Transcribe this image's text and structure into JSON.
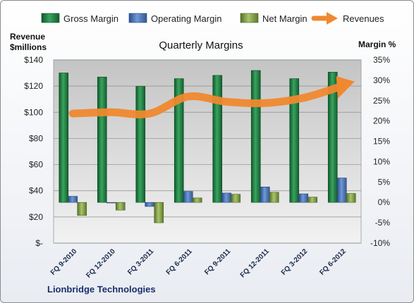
{
  "chart_data": {
    "type": "bar",
    "title": "Quarterly Margins",
    "y_left_label_line1": "Revenue",
    "y_left_label_line2": "$millions",
    "y_right_label": "Margin %",
    "footer": "Lionbridge Technologies",
    "categories": [
      "FQ 9-2010",
      "FQ 12-2010",
      "FQ 3-2011",
      "FQ 6-2011",
      "FQ 9-2011",
      "FQ 12-2011",
      "FQ 3-2012",
      "FQ 6-2012"
    ],
    "left_axis": {
      "min": 0,
      "max": 140,
      "ticks": [
        "$-",
        "$20",
        "$40",
        "$60",
        "$80",
        "$100",
        "$120",
        "$140"
      ],
      "tick_values": [
        0,
        20,
        40,
        60,
        80,
        100,
        120,
        140
      ]
    },
    "right_axis": {
      "min": -10,
      "max": 35,
      "ticks": [
        "-10%",
        "-5%",
        "0%",
        "5%",
        "10%",
        "15%",
        "20%",
        "25%",
        "30%",
        "35%"
      ],
      "tick_values": [
        -10,
        -5,
        0,
        5,
        10,
        15,
        20,
        25,
        30,
        35
      ]
    },
    "series": [
      {
        "name": "Gross Margin",
        "axis": "right",
        "color": "#1f7a3f",
        "values": [
          31.8,
          30.8,
          28.5,
          30.4,
          31.2,
          32.4,
          30.4,
          32.0
        ]
      },
      {
        "name": "Operating Margin",
        "axis": "right",
        "color": "#4a72b8",
        "values": [
          1.5,
          -0.1,
          -1.0,
          2.7,
          2.3,
          3.8,
          2.1,
          6.0
        ]
      },
      {
        "name": "Net Margin",
        "axis": "right",
        "color": "#7a9a3a",
        "values": [
          -3.2,
          -1.9,
          -5.0,
          1.1,
          2.0,
          2.5,
          1.3,
          2.2
        ]
      }
    ],
    "line_series": {
      "name": "Revenues",
      "axis": "left",
      "color": "#f0882f",
      "values": [
        99,
        100,
        99,
        112,
        108,
        107,
        111,
        120
      ]
    },
    "grid": true,
    "legend_position": "top"
  }
}
